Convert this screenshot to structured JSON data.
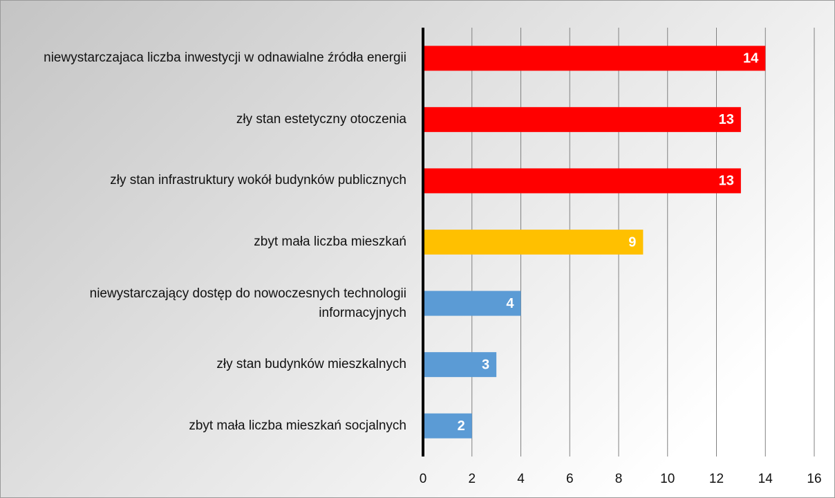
{
  "chart_data": {
    "type": "bar",
    "orientation": "horizontal",
    "categories": [
      "niewystarczajaca liczba inwestycji w odnawialne źródła energii",
      "zły stan estetyczny otoczenia",
      "zły stan infrastruktury wokół budynków publicznych",
      "zbyt mała liczba mieszkań",
      "niewystarczający dostęp do nowoczesnych technologii informacyjnych",
      "zły stan budynków mieszkalnych",
      "zbyt mała liczba mieszkań socjalnych"
    ],
    "values": [
      14,
      13,
      13,
      9,
      4,
      3,
      2
    ],
    "colors": [
      "#ff0000",
      "#ff0000",
      "#ff0000",
      "#ffc000",
      "#5b9bd5",
      "#5b9bd5",
      "#5b9bd5"
    ],
    "xlim": [
      0,
      16
    ],
    "xticks": [
      0,
      2,
      4,
      6,
      8,
      10,
      12,
      14,
      16
    ],
    "grid": true
  }
}
